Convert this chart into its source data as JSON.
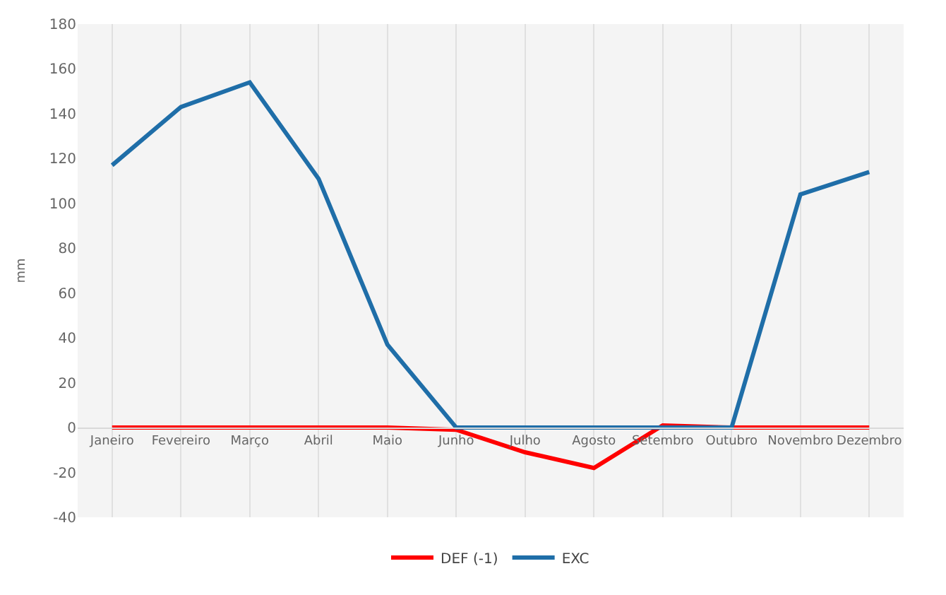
{
  "chart_data": {
    "type": "line",
    "ylabel": "mm",
    "categories": [
      "Janeiro",
      "Fevereiro",
      "Março",
      "Abril",
      "Maio",
      "Junho",
      "Julho",
      "Agosto",
      "Setembro",
      "Outubro",
      "Novembro",
      "Dezembro"
    ],
    "series": [
      {
        "name": "DEF (-1)",
        "color": "#ff0000",
        "values": [
          0,
          0,
          0,
          0,
          0,
          -1,
          -11,
          -18,
          1,
          0,
          0,
          0
        ]
      },
      {
        "name": "EXC",
        "color": "#1f6ea8",
        "values": [
          117,
          143,
          154,
          111,
          37,
          0,
          0,
          0,
          0,
          0,
          104,
          114
        ]
      }
    ],
    "ylim": [
      -40,
      180
    ],
    "yticks": [
      -40,
      -20,
      0,
      20,
      40,
      60,
      80,
      100,
      120,
      140,
      160,
      180
    ],
    "grid": "x",
    "legend": "bottom",
    "marker": "none",
    "line_style": "solid"
  }
}
